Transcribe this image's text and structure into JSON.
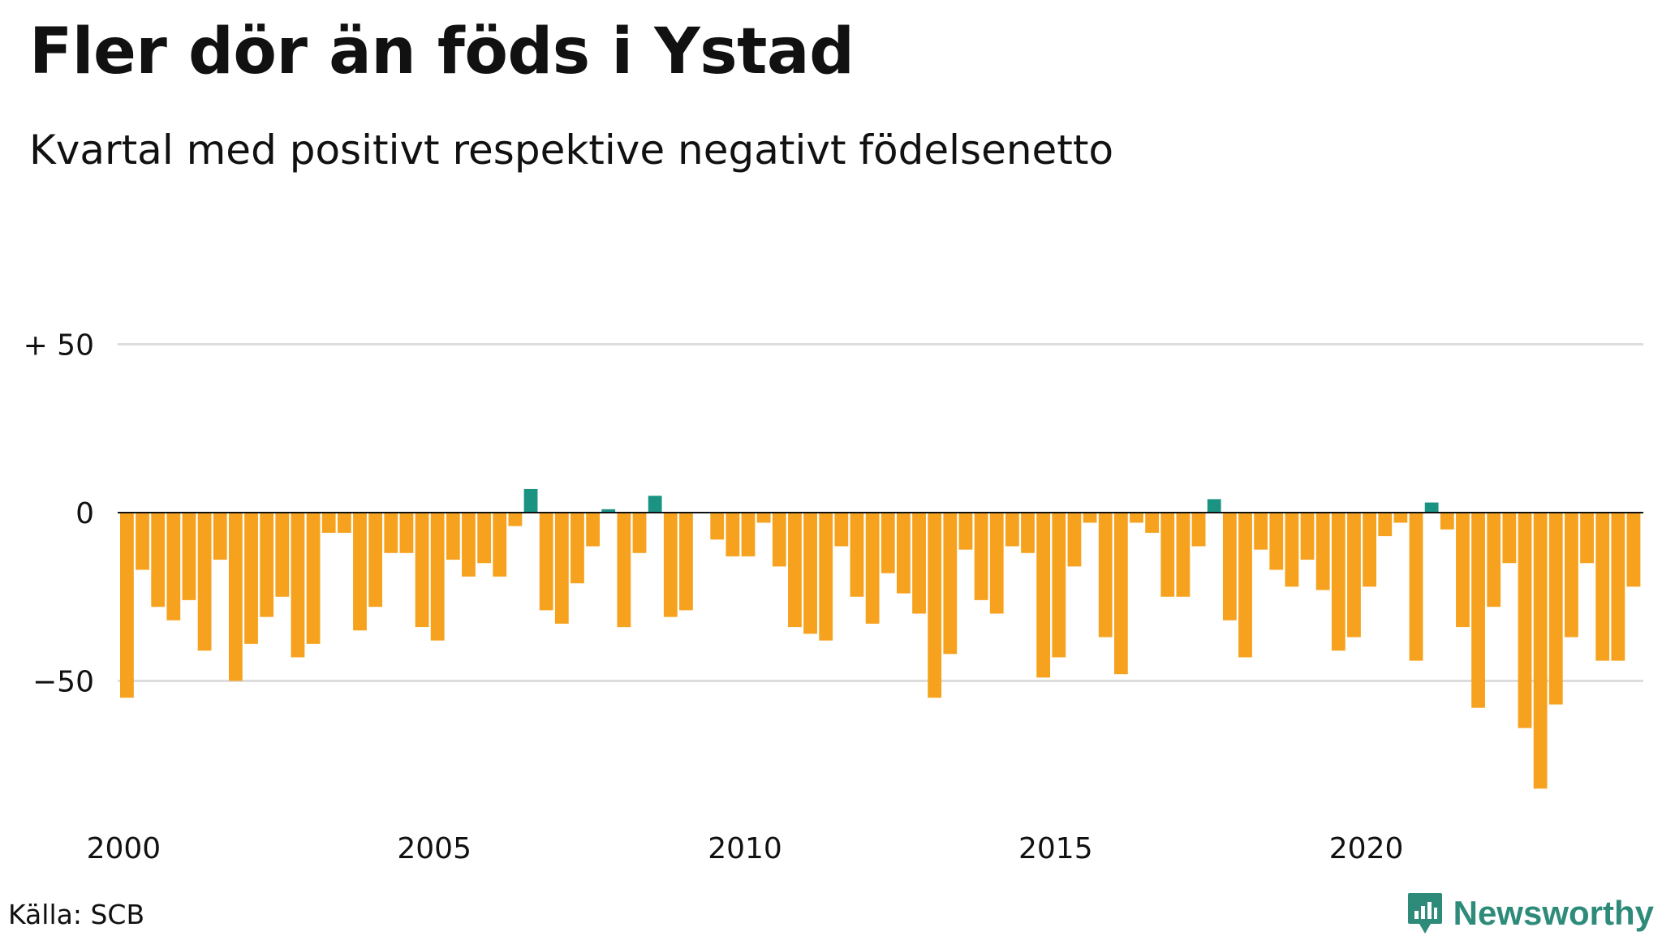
{
  "header": {
    "title": "Fler dör än föds i Ystad",
    "subtitle": "Kvartal med positivt respektive negativt födelsenetto"
  },
  "footer": {
    "source": "Källa: SCB",
    "brand": "Newsworthy",
    "brand_icon": "newsworthy-logo-icon"
  },
  "colors": {
    "positive": "#1a9383",
    "negative": "#f6a21e",
    "grid": "#dddddd",
    "baseline": "#111111",
    "brand": "#2e8b7a"
  },
  "chart_data": {
    "type": "bar",
    "x_start": "2000 Q1",
    "x_end": "2024 Q2",
    "x_ticks": [
      "2000",
      "2005",
      "2010",
      "2015",
      "2020"
    ],
    "y_ticks": [
      {
        "value": 50,
        "label": "+ 50"
      },
      {
        "value": 0,
        "label": "0"
      },
      {
        "value": -50,
        "label": "−50"
      }
    ],
    "ylim": [
      -90,
      50
    ],
    "grid": true,
    "values": [
      -55,
      -17,
      -28,
      -32,
      -26,
      -41,
      -14,
      -50,
      -39,
      -31,
      -25,
      -43,
      -39,
      -6,
      -6,
      -35,
      -28,
      -12,
      -12,
      -34,
      -38,
      -14,
      -19,
      -15,
      -19,
      -4,
      7,
      -29,
      -33,
      -21,
      -10,
      1,
      -34,
      -12,
      5,
      -31,
      -29,
      0,
      -8,
      -13,
      -13,
      -3,
      -16,
      -34,
      -36,
      -38,
      -10,
      -25,
      -33,
      -18,
      -24,
      -30,
      -55,
      -42,
      -11,
      -26,
      -30,
      -10,
      -12,
      -49,
      -43,
      -16,
      -3,
      -37,
      -48,
      -3,
      -6,
      -25,
      -25,
      -10,
      4,
      -32,
      -43,
      -11,
      -17,
      -22,
      -14,
      -23,
      -41,
      -37,
      -22,
      -7,
      -3,
      -44,
      3,
      -5,
      -34,
      -58,
      -28,
      -15,
      -64,
      -82,
      -57,
      -37,
      -15,
      -44,
      -44,
      -22
    ]
  }
}
